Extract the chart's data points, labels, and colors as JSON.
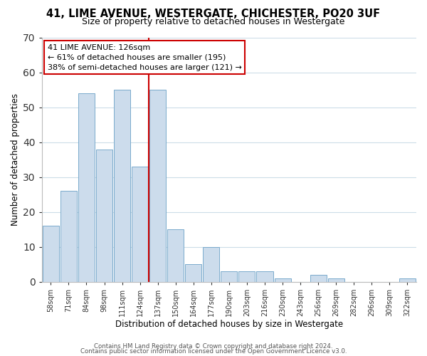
{
  "title_line1": "41, LIME AVENUE, WESTERGATE, CHICHESTER, PO20 3UF",
  "title_line2": "Size of property relative to detached houses in Westergate",
  "xlabel": "Distribution of detached houses by size in Westergate",
  "ylabel": "Number of detached properties",
  "bar_labels": [
    "58sqm",
    "71sqm",
    "84sqm",
    "98sqm",
    "111sqm",
    "124sqm",
    "137sqm",
    "150sqm",
    "164sqm",
    "177sqm",
    "190sqm",
    "203sqm",
    "216sqm",
    "230sqm",
    "243sqm",
    "256sqm",
    "269sqm",
    "282sqm",
    "296sqm",
    "309sqm",
    "322sqm"
  ],
  "bar_heights": [
    16,
    26,
    54,
    38,
    55,
    33,
    55,
    15,
    5,
    10,
    3,
    3,
    3,
    1,
    0,
    2,
    1,
    0,
    0,
    0,
    1
  ],
  "bar_color": "#ccdcec",
  "bar_edgecolor": "#7aaacc",
  "vline_x_index": 5,
  "vline_color": "#cc0000",
  "annotation_text": "41 LIME AVENUE: 126sqm\n← 61% of detached houses are smaller (195)\n38% of semi-detached houses are larger (121) →",
  "annotation_box_color": "#ffffff",
  "annotation_box_edgecolor": "#cc0000",
  "ylim": [
    0,
    70
  ],
  "yticks": [
    0,
    10,
    20,
    30,
    40,
    50,
    60,
    70
  ],
  "footer1": "Contains HM Land Registry data © Crown copyright and database right 2024.",
  "footer2": "Contains public sector information licensed under the Open Government Licence v3.0.",
  "background_color": "#ffffff",
  "grid_color": "#ccdde8"
}
